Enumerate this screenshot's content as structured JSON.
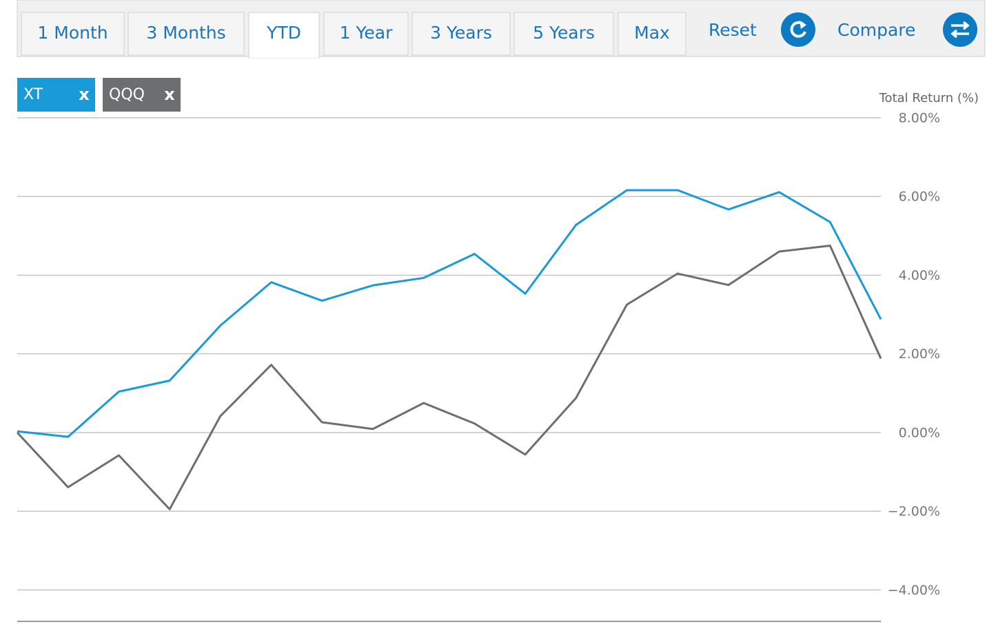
{
  "tabs": [
    {
      "label": "1 Month"
    },
    {
      "label": "3 Months"
    },
    {
      "label": "YTD"
    },
    {
      "label": "1 Year"
    },
    {
      "label": "3 Years"
    },
    {
      "label": "5 Years"
    },
    {
      "label": "Max"
    }
  ],
  "selected_tab": 2,
  "actions": {
    "reset": "Reset",
    "compare": "Compare"
  },
  "chip_remove": "x",
  "chart_data": {
    "type": "line",
    "y_axis_label": "Total Return (%)",
    "categories": [
      null,
      null,
      null,
      null,
      null,
      null,
      null,
      null,
      null,
      null,
      null,
      null,
      null,
      null,
      null,
      null,
      null,
      null
    ],
    "series": [
      {
        "name": "XT",
        "color": "#1a9ad6",
        "values": [
          0.03,
          -0.11,
          1.04,
          1.32,
          2.72,
          3.82,
          3.35,
          3.74,
          3.93,
          4.54,
          3.53,
          5.28,
          6.16,
          6.16,
          5.67,
          6.11,
          5.35,
          2.88
        ]
      },
      {
        "name": "QQQ",
        "color": "#6d6e70",
        "values": [
          0,
          -1.39,
          -0.58,
          -1.95,
          0.42,
          1.72,
          0.26,
          0.09,
          0.75,
          0.23,
          -0.56,
          0.88,
          3.25,
          4.04,
          3.75,
          4.6,
          4.75,
          1.88
        ]
      }
    ],
    "ylim": [
      -4.8,
      8
    ],
    "yticks": [
      {
        "value": 8,
        "label": "8.00%"
      },
      {
        "value": 6,
        "label": "6.00%"
      },
      {
        "value": 4,
        "label": "4.00%"
      },
      {
        "value": 2,
        "label": "2.00%"
      },
      {
        "value": 0,
        "label": "0.00%"
      },
      {
        "value": -2,
        "label": "−2.00%"
      },
      {
        "value": -4,
        "label": "−4.00%"
      }
    ],
    "grid": true
  }
}
